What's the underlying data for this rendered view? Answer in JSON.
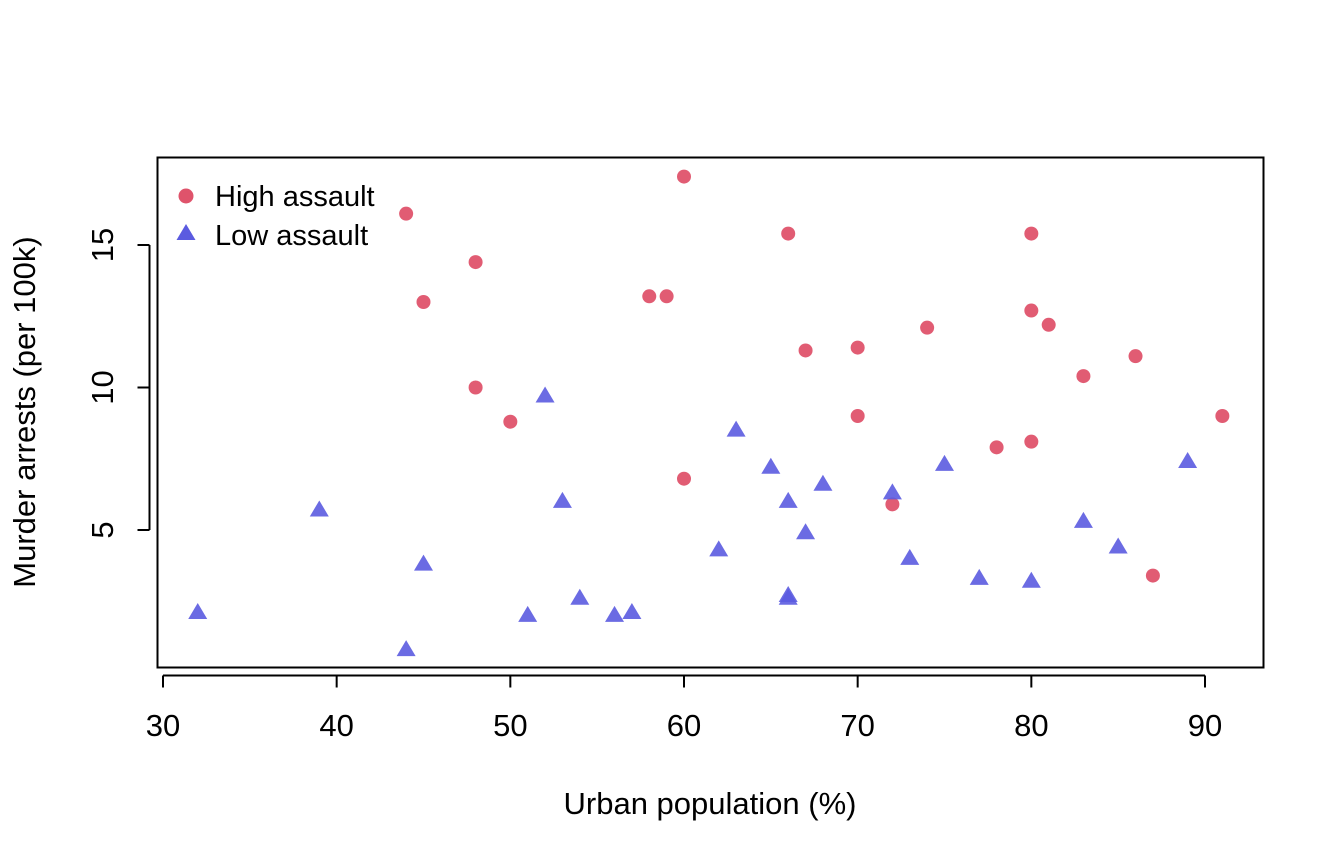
{
  "chart_data": {
    "type": "scatter",
    "title": "",
    "xlabel": "Urban population (%)",
    "ylabel": "Murder arrests (per 100k)",
    "xlim": [
      30,
      93
    ],
    "ylim": [
      0.8,
      17.4
    ],
    "xticks": [
      30,
      40,
      50,
      60,
      70,
      80,
      90
    ],
    "yticks": [
      5,
      10,
      15
    ],
    "grid": false,
    "legend_position": "top-left",
    "series": [
      {
        "name": "High assault",
        "marker": "circle",
        "color": "#DF536B",
        "points": [
          {
            "x": 44,
            "y": 16.1
          },
          {
            "x": 45,
            "y": 13.0
          },
          {
            "x": 48,
            "y": 14.4
          },
          {
            "x": 48,
            "y": 10.0
          },
          {
            "x": 50,
            "y": 8.8
          },
          {
            "x": 58,
            "y": 13.2
          },
          {
            "x": 59,
            "y": 13.2
          },
          {
            "x": 60,
            "y": 17.4
          },
          {
            "x": 60,
            "y": 6.8
          },
          {
            "x": 66,
            "y": 15.4
          },
          {
            "x": 67,
            "y": 11.3
          },
          {
            "x": 70,
            "y": 11.4
          },
          {
            "x": 70,
            "y": 9.0
          },
          {
            "x": 72,
            "y": 5.9
          },
          {
            "x": 74,
            "y": 12.1
          },
          {
            "x": 78,
            "y": 7.9
          },
          {
            "x": 80,
            "y": 15.4
          },
          {
            "x": 80,
            "y": 12.7
          },
          {
            "x": 80,
            "y": 8.1
          },
          {
            "x": 81,
            "y": 12.2
          },
          {
            "x": 83,
            "y": 10.4
          },
          {
            "x": 86,
            "y": 11.1
          },
          {
            "x": 87,
            "y": 3.4
          },
          {
            "x": 91,
            "y": 9.0
          }
        ]
      },
      {
        "name": "Low assault",
        "marker": "triangle",
        "color": "#5B5BE0",
        "points": [
          {
            "x": 32,
            "y": 2.1
          },
          {
            "x": 39,
            "y": 5.7
          },
          {
            "x": 44,
            "y": 0.8
          },
          {
            "x": 45,
            "y": 3.8
          },
          {
            "x": 51,
            "y": 2.0
          },
          {
            "x": 52,
            "y": 9.7
          },
          {
            "x": 53,
            "y": 6.0
          },
          {
            "x": 54,
            "y": 2.6
          },
          {
            "x": 56,
            "y": 2.0
          },
          {
            "x": 57,
            "y": 2.1
          },
          {
            "x": 62,
            "y": 4.3
          },
          {
            "x": 63,
            "y": 8.5
          },
          {
            "x": 65,
            "y": 7.2
          },
          {
            "x": 66,
            "y": 6.0
          },
          {
            "x": 66,
            "y": 2.6
          },
          {
            "x": 66,
            "y": 2.7
          },
          {
            "x": 67,
            "y": 4.9
          },
          {
            "x": 68,
            "y": 6.6
          },
          {
            "x": 72,
            "y": 6.3
          },
          {
            "x": 73,
            "y": 4.0
          },
          {
            "x": 75,
            "y": 7.3
          },
          {
            "x": 77,
            "y": 3.3
          },
          {
            "x": 80,
            "y": 3.2
          },
          {
            "x": 83,
            "y": 5.3
          },
          {
            "x": 85,
            "y": 4.4
          },
          {
            "x": 89,
            "y": 7.4
          }
        ]
      }
    ]
  }
}
